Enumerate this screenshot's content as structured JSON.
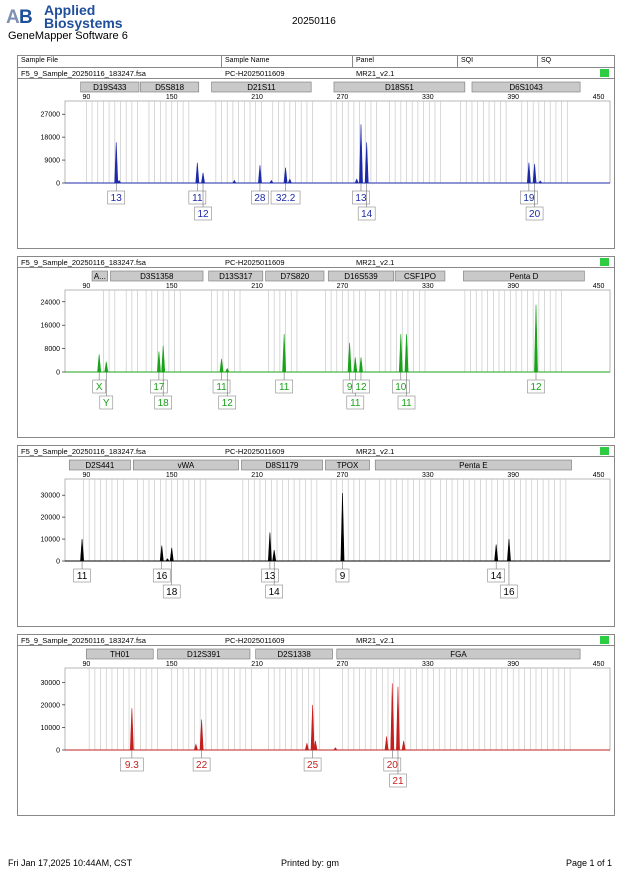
{
  "header": {
    "brand_line1": "Applied",
    "brand_line2": "Biosystems",
    "software": "GeneMapper Software 6",
    "run_date": "20250116",
    "columns": [
      "Sample File",
      "Sample Name",
      "Panel",
      "SQI",
      "SQ"
    ]
  },
  "panel_info": {
    "sample_file": "F5_9_Sample_20250116_183247.fsa",
    "sample_name": "PC-H2025011609",
    "panel": "MR21_v2.1"
  },
  "colors": {
    "blue": "#1c2aa8",
    "green": "#19a319",
    "black": "#000000",
    "red": "#c41f1f",
    "bin_line": "#c8c8c8",
    "marker_fill": "#c9c9c9",
    "status": "#2ecc40"
  },
  "chart_data": [
    {
      "type": "line",
      "dye": "blue",
      "x_ticks": [
        90,
        150,
        210,
        270,
        330,
        390,
        450
      ],
      "xlim": [
        75,
        458
      ],
      "y_ticks": [
        0,
        9000,
        18000,
        27000
      ],
      "ylim": [
        0,
        31000
      ],
      "markers": [
        {
          "name": "D19S433",
          "start": 86,
          "end": 127
        },
        {
          "name": "D5S818",
          "start": 128,
          "end": 169
        },
        {
          "name": "D21S11",
          "start": 178,
          "end": 248
        },
        {
          "name": "D18S51",
          "start": 264,
          "end": 356
        },
        {
          "name": "D6S1043",
          "start": 361,
          "end": 437
        }
      ],
      "bins": [
        [
          90,
          126
        ],
        [
          134,
          162
        ],
        [
          181,
          214
        ],
        [
          221,
          249
        ],
        [
          262,
          296
        ],
        [
          303,
          341
        ],
        [
          353,
          388
        ],
        [
          396,
          428
        ]
      ],
      "peaks": [
        {
          "size": 111,
          "height": 16000
        },
        {
          "size": 113,
          "height": 1000
        },
        {
          "size": 168,
          "height": 8000
        },
        {
          "size": 172,
          "height": 4000
        },
        {
          "size": 194,
          "height": 1000
        },
        {
          "size": 212,
          "height": 7000
        },
        {
          "size": 220,
          "height": 1000
        },
        {
          "size": 230,
          "height": 6000
        },
        {
          "size": 233,
          "height": 1500
        },
        {
          "size": 280,
          "height": 1500
        },
        {
          "size": 283,
          "height": 23000
        },
        {
          "size": 287,
          "height": 16000
        },
        {
          "size": 401,
          "height": 8000
        },
        {
          "size": 405,
          "height": 7500
        },
        {
          "size": 409,
          "height": 800
        }
      ],
      "alleles": [
        {
          "label": "13",
          "size": 111,
          "row": 0
        },
        {
          "label": "11",
          "size": 168,
          "row": 0
        },
        {
          "label": "12",
          "size": 172,
          "row": 1
        },
        {
          "label": "28",
          "size": 212,
          "row": 0
        },
        {
          "label": "32.2",
          "size": 230,
          "row": 0
        },
        {
          "label": "13",
          "size": 283,
          "row": 0
        },
        {
          "label": "14",
          "size": 287,
          "row": 1
        },
        {
          "label": "19",
          "size": 401,
          "row": 0
        },
        {
          "label": "20",
          "size": 405,
          "row": 1
        }
      ]
    },
    {
      "type": "line",
      "dye": "green",
      "x_ticks": [
        90,
        150,
        210,
        270,
        330,
        390,
        450
      ],
      "xlim": [
        75,
        458
      ],
      "y_ticks": [
        0,
        8000,
        16000,
        24000
      ],
      "ylim": [
        0,
        27000
      ],
      "markers": [
        {
          "name": "A...",
          "start": 94,
          "end": 105
        },
        {
          "name": "D3S1358",
          "start": 107,
          "end": 172
        },
        {
          "name": "D13S317",
          "start": 176,
          "end": 214
        },
        {
          "name": "D7S820",
          "start": 216,
          "end": 257
        },
        {
          "name": "D16S539",
          "start": 260,
          "end": 306
        },
        {
          "name": "CSF1PO",
          "start": 307,
          "end": 342
        },
        {
          "name": "Penta D",
          "start": 355,
          "end": 440
        }
      ],
      "bins": [
        [
          102,
          112
        ],
        [
          118,
          128
        ],
        [
          132,
          158
        ],
        [
          178,
          198
        ],
        [
          218,
          240
        ],
        [
          258,
          288
        ],
        [
          296,
          330
        ],
        [
          356,
          425
        ]
      ],
      "peaks": [
        {
          "size": 99,
          "height": 6000
        },
        {
          "size": 104,
          "height": 3500
        },
        {
          "size": 141,
          "height": 7000
        },
        {
          "size": 144,
          "height": 9000
        },
        {
          "size": 185,
          "height": 4500
        },
        {
          "size": 189,
          "height": 1200
        },
        {
          "size": 229,
          "height": 13000
        },
        {
          "size": 275,
          "height": 10000
        },
        {
          "size": 279,
          "height": 5000
        },
        {
          "size": 283,
          "height": 5000
        },
        {
          "size": 311,
          "height": 13000
        },
        {
          "size": 315,
          "height": 13000
        },
        {
          "size": 406,
          "height": 23000
        }
      ],
      "alleles": [
        {
          "label": "X",
          "size": 99,
          "row": 0
        },
        {
          "label": "Y",
          "size": 104,
          "row": 1
        },
        {
          "label": "17",
          "size": 141,
          "row": 0
        },
        {
          "label": "18",
          "size": 144,
          "row": 1
        },
        {
          "label": "11",
          "size": 185,
          "row": 0
        },
        {
          "label": "12",
          "size": 189,
          "row": 1
        },
        {
          "label": "11",
          "size": 229,
          "row": 0
        },
        {
          "label": "9",
          "size": 275,
          "row": 0
        },
        {
          "label": "11",
          "size": 279,
          "row": 1
        },
        {
          "label": "12",
          "size": 283,
          "row": 0
        },
        {
          "label": "10",
          "size": 311,
          "row": 0
        },
        {
          "label": "11",
          "size": 315,
          "row": 1
        },
        {
          "label": "12",
          "size": 406,
          "row": 0
        }
      ]
    },
    {
      "type": "line",
      "dye": "black",
      "x_ticks": [
        90,
        150,
        210,
        270,
        330,
        390,
        450
      ],
      "xlim": [
        75,
        458
      ],
      "y_ticks": [
        0,
        10000,
        20000,
        30000
      ],
      "ylim": [
        0,
        36000
      ],
      "markers": [
        {
          "name": "D2S441",
          "start": 78,
          "end": 121
        },
        {
          "name": "vWA",
          "start": 123,
          "end": 197
        },
        {
          "name": "D8S1179",
          "start": 199,
          "end": 256
        },
        {
          "name": "TPOX",
          "start": 258,
          "end": 289
        },
        {
          "name": "Penta E",
          "start": 293,
          "end": 431
        }
      ],
      "bins": [
        [
          88,
          118
        ],
        [
          126,
          176
        ],
        [
          200,
          252
        ],
        [
          262,
          288
        ],
        [
          296,
          335
        ],
        [
          339,
          430
        ]
      ],
      "peaks": [
        {
          "size": 87,
          "height": 10000
        },
        {
          "size": 143,
          "height": 7000
        },
        {
          "size": 147,
          "height": 1000
        },
        {
          "size": 150,
          "height": 6000
        },
        {
          "size": 219,
          "height": 13000
        },
        {
          "size": 222,
          "height": 5000
        },
        {
          "size": 270,
          "height": 31000
        },
        {
          "size": 378,
          "height": 7500
        },
        {
          "size": 387,
          "height": 10000
        }
      ],
      "alleles": [
        {
          "label": "11",
          "size": 87,
          "row": 0
        },
        {
          "label": "16",
          "size": 143,
          "row": 0
        },
        {
          "label": "18",
          "size": 150,
          "row": 1
        },
        {
          "label": "13",
          "size": 219,
          "row": 0
        },
        {
          "label": "14",
          "size": 222,
          "row": 1
        },
        {
          "label": "9",
          "size": 270,
          "row": 0
        },
        {
          "label": "14",
          "size": 378,
          "row": 0
        },
        {
          "label": "16",
          "size": 387,
          "row": 1
        }
      ]
    },
    {
      "type": "line",
      "dye": "red",
      "x_ticks": [
        90,
        150,
        210,
        270,
        330,
        390,
        450
      ],
      "xlim": [
        75,
        458
      ],
      "y_ticks": [
        0,
        10000,
        20000,
        30000
      ],
      "ylim": [
        0,
        35000
      ],
      "markers": [
        {
          "name": "TH01",
          "start": 90,
          "end": 137
        },
        {
          "name": "D12S391",
          "start": 140,
          "end": 205
        },
        {
          "name": "D2S1338",
          "start": 209,
          "end": 263
        },
        {
          "name": "FGA",
          "start": 266,
          "end": 437
        }
      ],
      "bins": [
        [
          92,
          140
        ],
        [
          150,
          206
        ],
        [
          218,
          256
        ],
        [
          270,
          432
        ]
      ],
      "peaks": [
        {
          "size": 122,
          "height": 18500
        },
        {
          "size": 167,
          "height": 2500
        },
        {
          "size": 171,
          "height": 13500
        },
        {
          "size": 245,
          "height": 3000
        },
        {
          "size": 249,
          "height": 20000
        },
        {
          "size": 251,
          "height": 4000
        },
        {
          "size": 265,
          "height": 1000
        },
        {
          "size": 301,
          "height": 6000
        },
        {
          "size": 305,
          "height": 29500
        },
        {
          "size": 309,
          "height": 28000
        },
        {
          "size": 313,
          "height": 4000
        }
      ],
      "alleles": [
        {
          "label": "9.3",
          "size": 122,
          "row": 0
        },
        {
          "label": "22",
          "size": 171,
          "row": 0
        },
        {
          "label": "25",
          "size": 249,
          "row": 0
        },
        {
          "label": "20",
          "size": 305,
          "row": 0
        },
        {
          "label": "21",
          "size": 309,
          "row": 1
        }
      ]
    }
  ],
  "footer": {
    "printed_at": "Fri Jan 17,2025 10:44AM, CST",
    "printed_by": "Printed by: gm",
    "page": "Page 1 of 1"
  }
}
